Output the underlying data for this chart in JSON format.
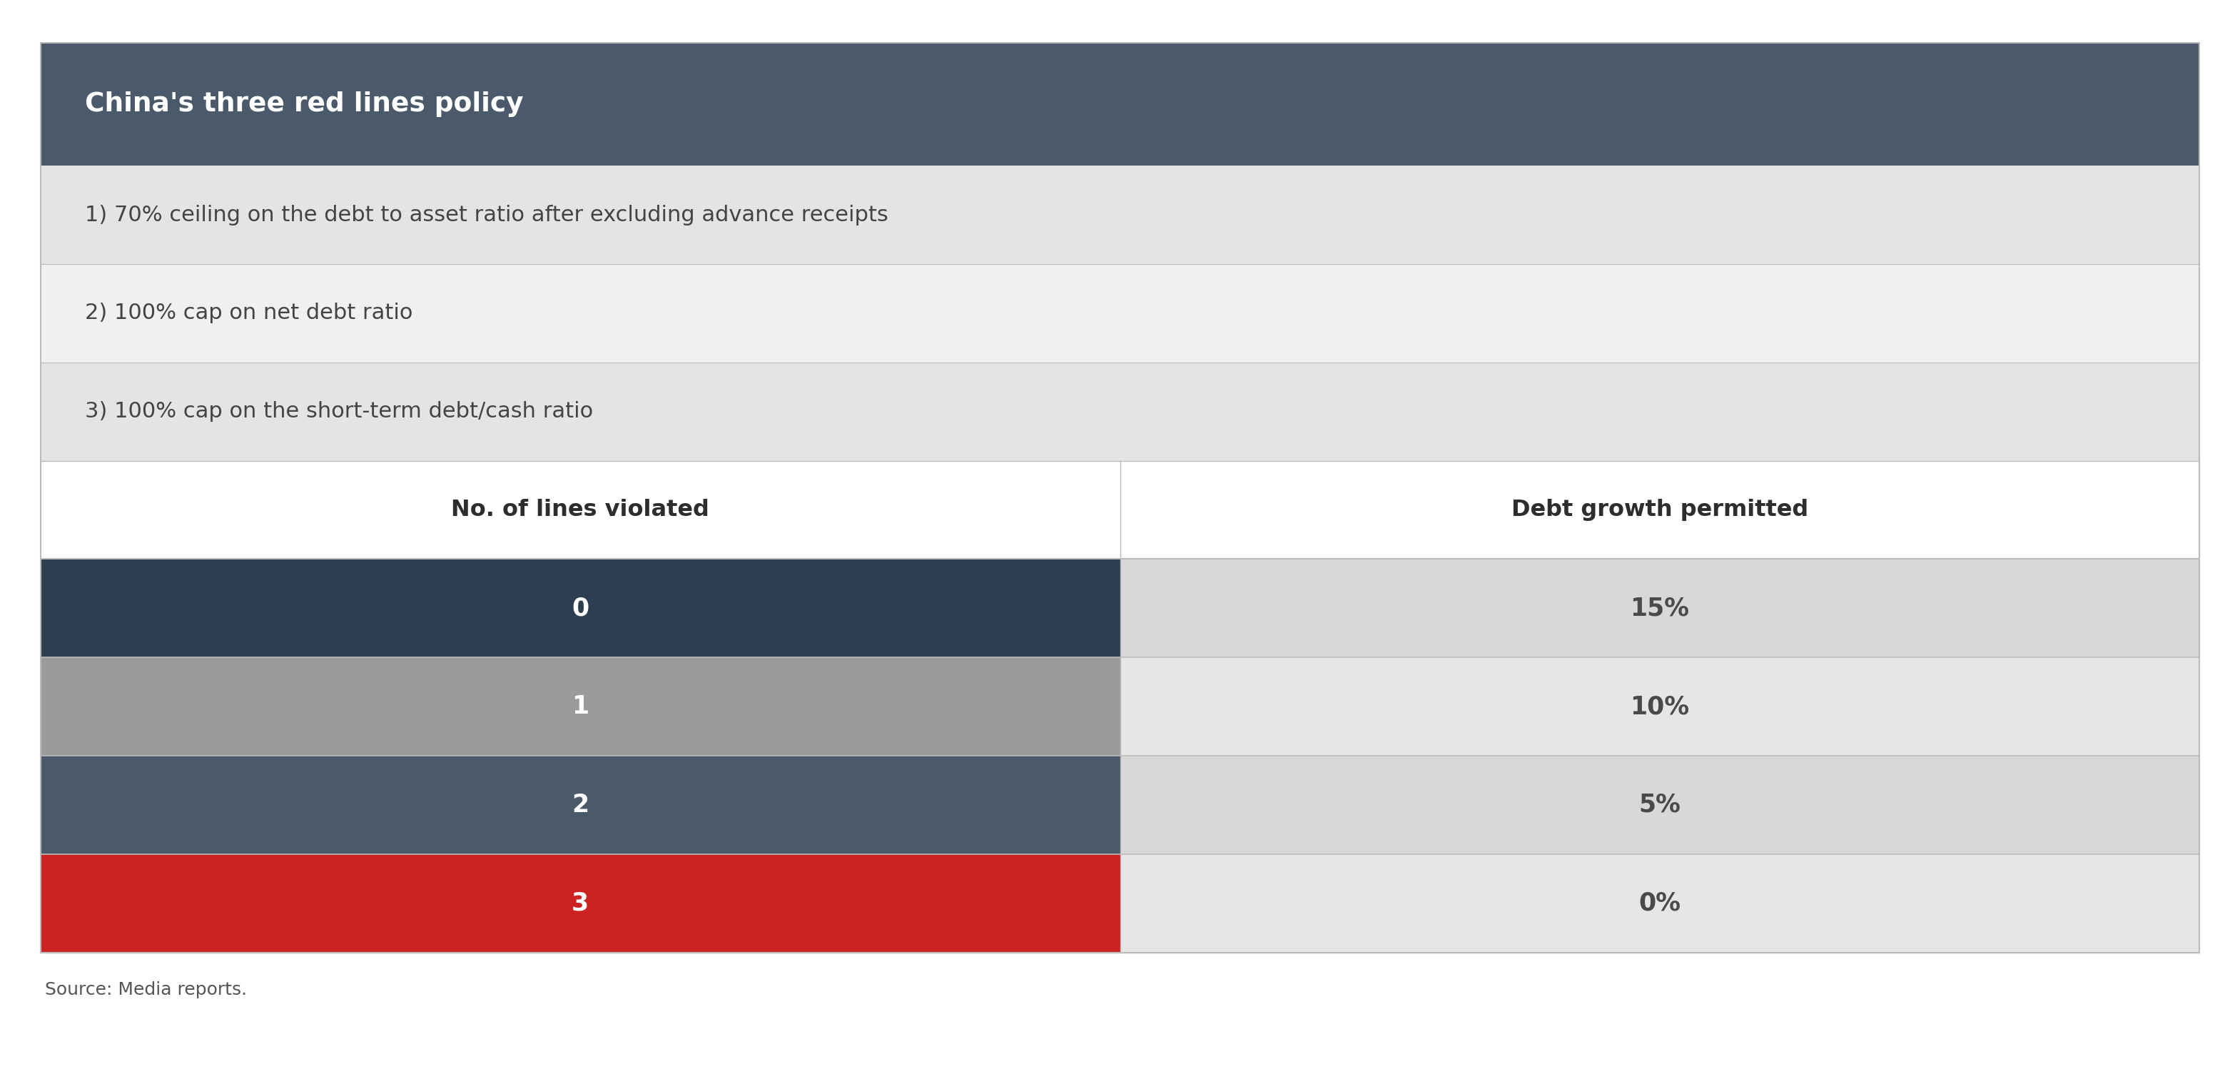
{
  "title": "China's three red lines policy",
  "title_bg_color": "#4a5a6a",
  "title_text_color": "#ffffff",
  "rules": [
    "1) 70% ceiling on the debt to asset ratio after excluding advance receipts",
    "2) 100% cap on net debt ratio",
    "3) 100% cap on the short-term debt/cash ratio"
  ],
  "rule_bg_colors": [
    "#e4e4e4",
    "#f0f0f0",
    "#e4e4e4"
  ],
  "rule_text_color": "#444444",
  "col_header_left": "No. of lines violated",
  "col_header_right": "Debt growth permitted",
  "col_header_bg": "#ffffff",
  "col_header_text_color": "#2d2d2d",
  "table_rows": [
    {
      "lines_violated": "0",
      "debt_growth": "15%",
      "left_bg": "#2d3e50",
      "right_bg": "#d8d8d8"
    },
    {
      "lines_violated": "1",
      "debt_growth": "10%",
      "left_bg": "#9b9b9b",
      "right_bg": "#e6e6e6"
    },
    {
      "lines_violated": "2",
      "debt_growth": "5%",
      "left_bg": "#4a5a6a",
      "right_bg": "#d8d8d8"
    },
    {
      "lines_violated": "3",
      "debt_growth": "0%",
      "left_bg": "#cc2222",
      "right_bg": "#e6e6e6"
    }
  ],
  "left_text_color": "#ffffff",
  "right_text_color": "#4a4a4a",
  "source_text": "Source: Media reports.",
  "source_text_color": "#555555",
  "divider_color": "#bbbbbb",
  "outer_border_color": "#bbbbbb",
  "figure_bg": "#ffffff"
}
